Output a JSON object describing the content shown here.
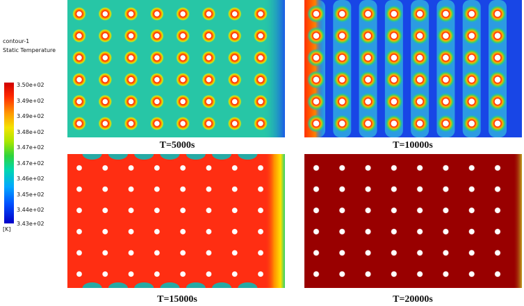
{
  "legend": {
    "title_line1": "contour-1",
    "title_line2": "Static Temperature",
    "ticks": [
      "3.50e+02",
      "3.49e+02",
      "3.49e+02",
      "3.48e+02",
      "3.47e+02",
      "3.47e+02",
      "3.46e+02",
      "3.45e+02",
      "3.44e+02",
      "3.43e+02"
    ],
    "unit": "[K]"
  },
  "panels": [
    {
      "caption": "",
      "fill": "#24c8a8"
    },
    {
      "caption": "T=5000s",
      "fill": "#2aa8e8"
    },
    {
      "caption": "T=10000s",
      "fill": "#ff2e10"
    },
    {
      "caption": "T=15000s",
      "fill": "#9a0000"
    }
  ],
  "captions": {
    "top_left": "T=5000s",
    "top_right": "T=10000s",
    "bottom_left": "T=15000s",
    "bottom_right": "T=20000s"
  },
  "grid": {
    "rows": 6,
    "cols": 8
  }
}
